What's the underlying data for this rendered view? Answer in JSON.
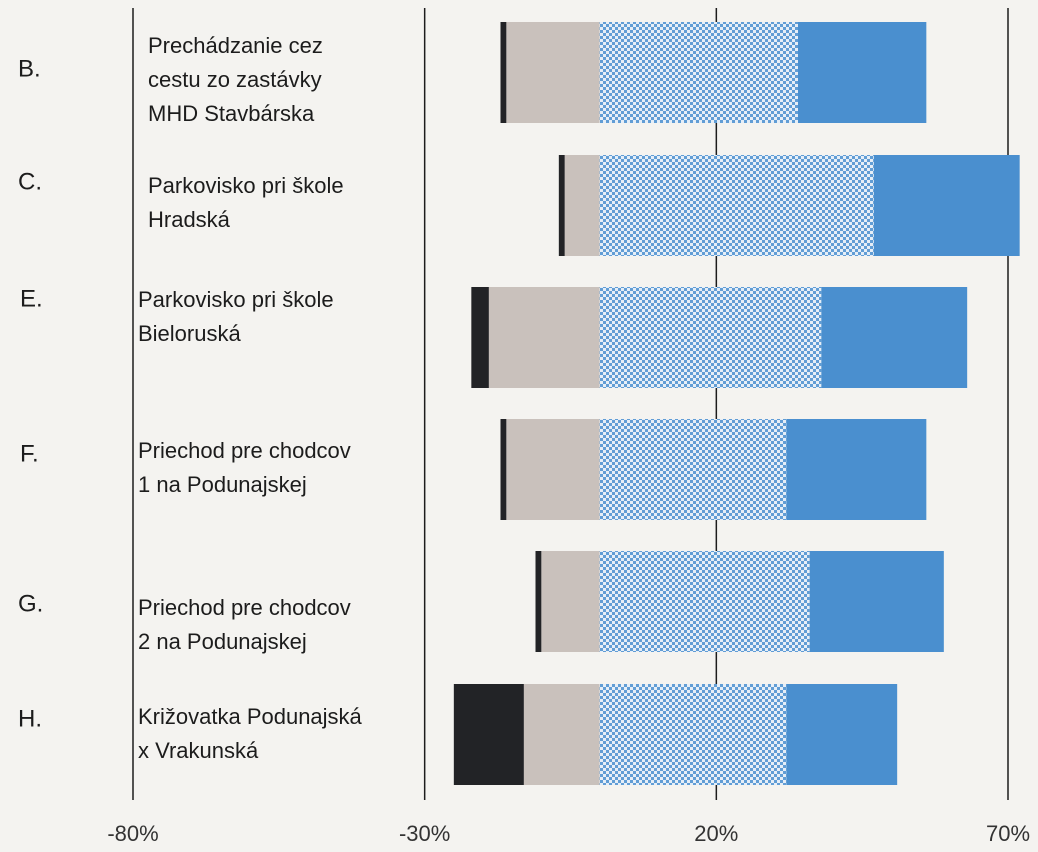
{
  "chart_data": {
    "type": "diverging-bar",
    "categories": [
      "B.",
      "C.",
      "E.",
      "F.",
      "G.",
      "H."
    ],
    "descriptions": [
      [
        "Prechádzanie cez",
        "cestu zo zastávky",
        "MHD Stavbárska"
      ],
      [
        "Parkovisko pri škole",
        "Hradská"
      ],
      [
        "Parkovisko pri škole",
        "Bieloruská"
      ],
      [
        "Priechod pre chodcov",
        "1 na Podunajskej"
      ],
      [
        "Priechod pre chodcov",
        "2 na Podunajskej"
      ],
      [
        "Križovatka Podunajská",
        "x Vrakunská"
      ]
    ],
    "series": [
      {
        "color": "#c9c1bc",
        "values": [
          -16,
          -6,
          -19,
          -16,
          -10,
          -13
        ]
      },
      {
        "color": "#222326",
        "values": [
          -1,
          -1,
          -3,
          -1,
          -1,
          -12
        ]
      },
      {
        "color": "#4a8fcf",
        "pattern": "checker",
        "values": [
          34,
          47,
          38,
          32,
          36,
          32
        ]
      },
      {
        "color": "#4a8fcf",
        "values": [
          22,
          25,
          25,
          24,
          23,
          19
        ]
      }
    ],
    "xlim": [
      -80,
      70
    ],
    "xticks": [
      {
        "value": -80,
        "label": "-80%"
      },
      {
        "value": -30,
        "label": "-30%"
      },
      {
        "value": 20,
        "label": "20%"
      },
      {
        "value": 70,
        "label": "70%"
      }
    ],
    "grid": true
  }
}
